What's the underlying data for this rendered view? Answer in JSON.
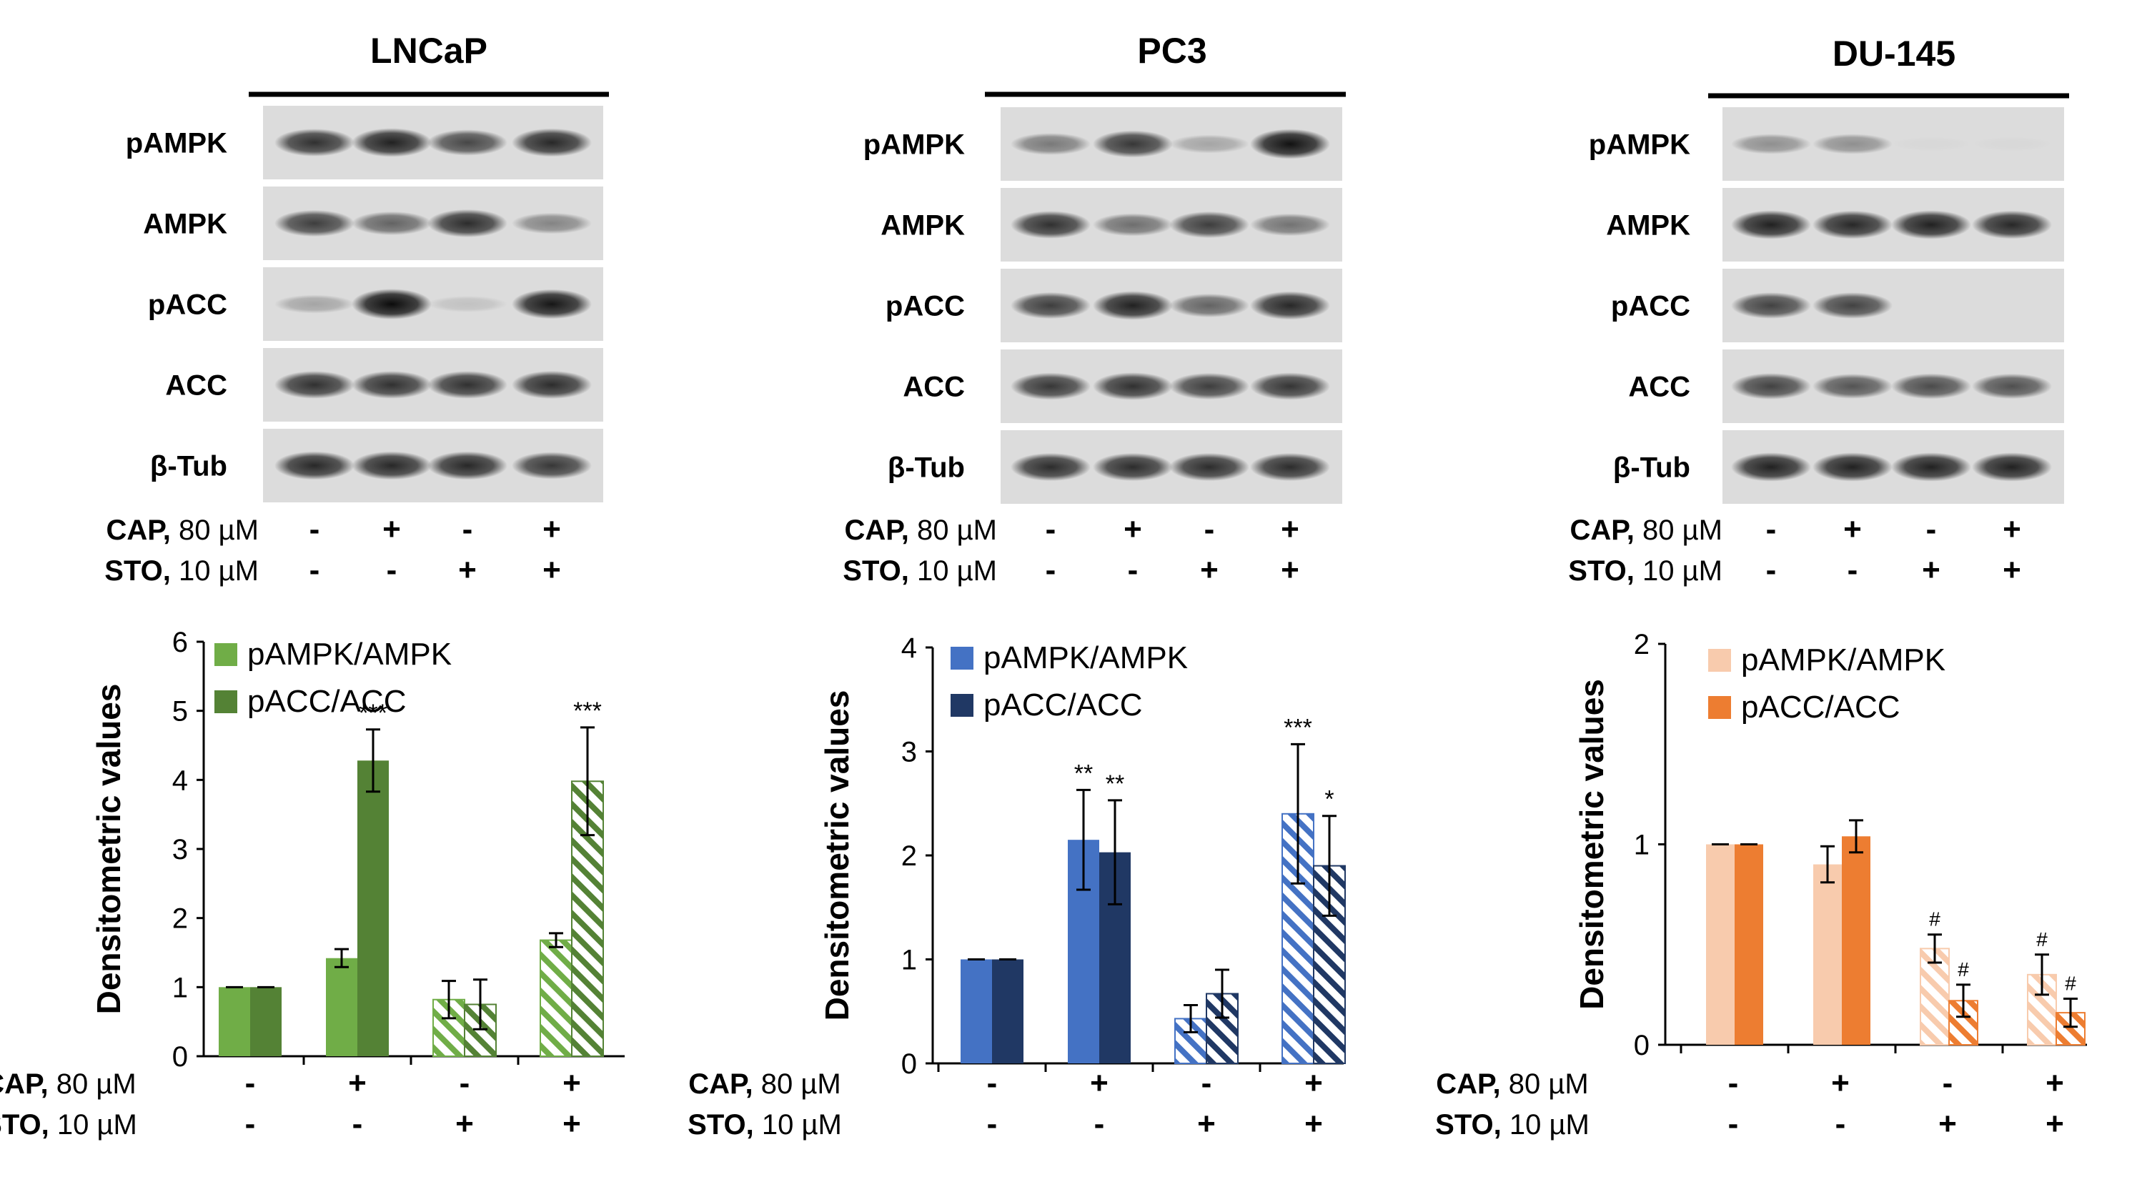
{
  "panels": [
    {
      "id": "lncap",
      "cell_line": "LNCaP",
      "blot_labels": [
        "pAMPK",
        "AMPK",
        "pACC",
        "ACC",
        "β-Tub"
      ],
      "blot_intensity": [
        [
          0.78,
          0.85,
          0.68,
          0.82
        ],
        [
          0.72,
          0.55,
          0.8,
          0.4
        ],
        [
          0.25,
          0.95,
          0.12,
          0.9
        ],
        [
          0.78,
          0.78,
          0.78,
          0.8
        ],
        [
          0.82,
          0.82,
          0.82,
          0.75
        ]
      ],
      "treatments": [
        {
          "name": "CAP,",
          "dose": "80 µM",
          "signs": [
            "-",
            "+",
            "-",
            "+"
          ]
        },
        {
          "name": "STO,",
          "dose": "10 µM",
          "signs": [
            "-",
            "-",
            "+",
            "+"
          ]
        }
      ],
      "colors": {
        "s1": "#70ad47",
        "s2": "#548235"
      },
      "chart_data": {
        "type": "bar",
        "ylabel": "Densitometric values",
        "ylim": [
          0,
          6
        ],
        "yticks": [
          0,
          1,
          2,
          3,
          4,
          5,
          6
        ],
        "categories": [
          "1",
          "2",
          "3",
          "4"
        ],
        "hatched": [
          false,
          false,
          true,
          true
        ],
        "legend": "top-left",
        "series": [
          {
            "name": "pAMPK/AMPK",
            "values": [
              1.0,
              1.42,
              0.82,
              1.68
            ],
            "errors": [
              0.0,
              0.13,
              0.27,
              0.1
            ],
            "marks": [
              "",
              "",
              "",
              ""
            ]
          },
          {
            "name": "pACC/ACC",
            "values": [
              1.0,
              4.28,
              0.75,
              3.98
            ],
            "errors": [
              0.0,
              0.45,
              0.36,
              0.78
            ],
            "marks": [
              "",
              "***",
              "",
              "***"
            ]
          }
        ]
      }
    },
    {
      "id": "pc3",
      "cell_line": "PC3",
      "blot_labels": [
        "pAMPK",
        "AMPK",
        "pACC",
        "ACC",
        "β-Tub"
      ],
      "blot_intensity": [
        [
          0.45,
          0.75,
          0.25,
          0.92
        ],
        [
          0.78,
          0.5,
          0.72,
          0.48
        ],
        [
          0.72,
          0.85,
          0.55,
          0.82
        ],
        [
          0.75,
          0.78,
          0.72,
          0.76
        ],
        [
          0.8,
          0.8,
          0.8,
          0.8
        ]
      ],
      "treatments": [
        {
          "name": "CAP,",
          "dose": "80 µM",
          "signs": [
            "-",
            "+",
            "-",
            "+"
          ]
        },
        {
          "name": "STO,",
          "dose": "10 µM",
          "signs": [
            "-",
            "-",
            "+",
            "+"
          ]
        }
      ],
      "colors": {
        "s1": "#4472c4",
        "s2": "#203864"
      },
      "chart_data": {
        "type": "bar",
        "ylabel": "Densitometric values",
        "ylim": [
          0,
          4
        ],
        "yticks": [
          0,
          1,
          2,
          3,
          4
        ],
        "categories": [
          "1",
          "2",
          "3",
          "4"
        ],
        "hatched": [
          false,
          false,
          true,
          true
        ],
        "legend": "top-left",
        "series": [
          {
            "name": "pAMPK/AMPK",
            "values": [
              1.0,
              2.15,
              0.43,
              2.4
            ],
            "errors": [
              0.0,
              0.48,
              0.13,
              0.67
            ],
            "marks": [
              "",
              "**",
              "",
              "***"
            ]
          },
          {
            "name": "pACC/ACC",
            "values": [
              1.0,
              2.03,
              0.67,
              1.9
            ],
            "errors": [
              0.0,
              0.5,
              0.23,
              0.48
            ],
            "marks": [
              "",
              "**",
              "",
              "*"
            ]
          }
        ]
      }
    },
    {
      "id": "du145",
      "cell_line": "DU-145",
      "blot_labels": [
        "pAMPK",
        "AMPK",
        "pACC",
        "ACC",
        "β-Tub"
      ],
      "blot_intensity": [
        [
          0.35,
          0.35,
          0.02,
          0.02
        ],
        [
          0.85,
          0.82,
          0.85,
          0.82
        ],
        [
          0.7,
          0.7,
          0.0,
          0.0
        ],
        [
          0.7,
          0.62,
          0.66,
          0.64
        ],
        [
          0.85,
          0.85,
          0.85,
          0.85
        ]
      ],
      "treatments": [
        {
          "name": "CAP,",
          "dose": "80 µM",
          "signs": [
            "-",
            "+",
            "-",
            "+"
          ]
        },
        {
          "name": "STO,",
          "dose": "10 µM",
          "signs": [
            "-",
            "-",
            "+",
            "+"
          ]
        }
      ],
      "colors": {
        "s1": "#f8cbad",
        "s2": "#ed7d31"
      },
      "chart_data": {
        "type": "bar",
        "ylabel": "Densitometric values",
        "ylim": [
          0,
          2
        ],
        "yticks": [
          0,
          1,
          2
        ],
        "categories": [
          "1",
          "2",
          "3",
          "4"
        ],
        "hatched": [
          false,
          false,
          true,
          true
        ],
        "legend": "top-left",
        "series": [
          {
            "name": "pAMPK/AMPK",
            "values": [
              1.0,
              0.9,
              0.48,
              0.35
            ],
            "errors": [
              0.0,
              0.09,
              0.07,
              0.1
            ],
            "marks": [
              "",
              "",
              "#",
              "#"
            ]
          },
          {
            "name": "pACC/ACC",
            "values": [
              1.0,
              1.04,
              0.22,
              0.16
            ],
            "errors": [
              0.0,
              0.08,
              0.08,
              0.07
            ],
            "marks": [
              "",
              "",
              "#",
              "#"
            ]
          }
        ]
      }
    }
  ]
}
